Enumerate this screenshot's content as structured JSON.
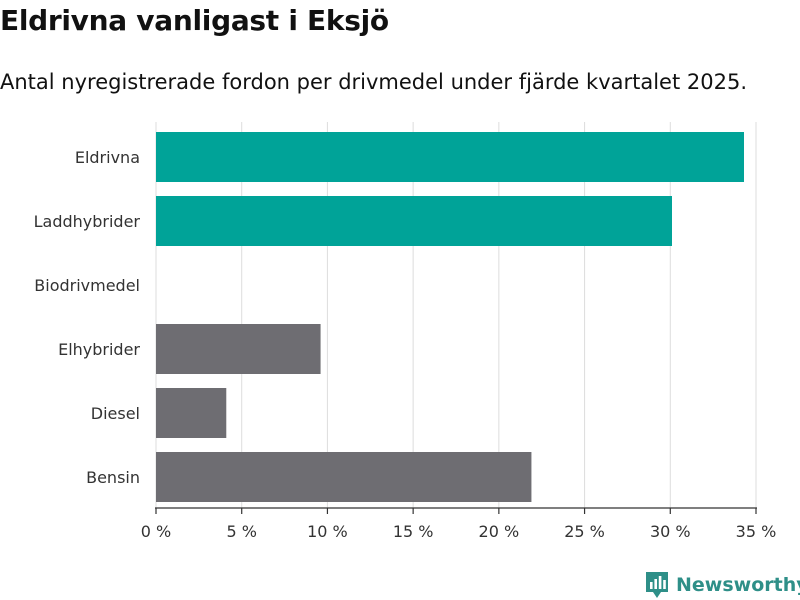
{
  "chart_data": {
    "type": "bar",
    "orientation": "horizontal",
    "title": "Eldrivna vanligast i Eksjö",
    "subtitle": "Antal nyregistrerade fordon per drivmedel under fjärde kvartalet 2025.",
    "categories": [
      "Eldrivna",
      "Laddhybrider",
      "Biodrivmedel",
      "Elhybrider",
      "Diesel",
      "Bensin"
    ],
    "values": [
      34.3,
      30.1,
      0,
      9.6,
      4.1,
      21.9
    ],
    "highlight": [
      true,
      true,
      false,
      false,
      false,
      false
    ],
    "xlim": [
      0,
      35
    ],
    "xticks": [
      0,
      5,
      10,
      15,
      20,
      25,
      30,
      35
    ],
    "xtick_labels": [
      "0 %",
      "5 %",
      "10 %",
      "15 %",
      "20 %",
      "25 %",
      "30 %",
      "35 %"
    ],
    "xlabel": "",
    "ylabel": "",
    "grid": true,
    "colors": {
      "highlight": "#00a398",
      "default": "#6e6d72",
      "grid": "#dddddd",
      "axis": "#333333"
    }
  },
  "brand": {
    "name": "Newsworthy",
    "icon": "newsworthy-logo-icon",
    "color": "#2e8f88"
  }
}
